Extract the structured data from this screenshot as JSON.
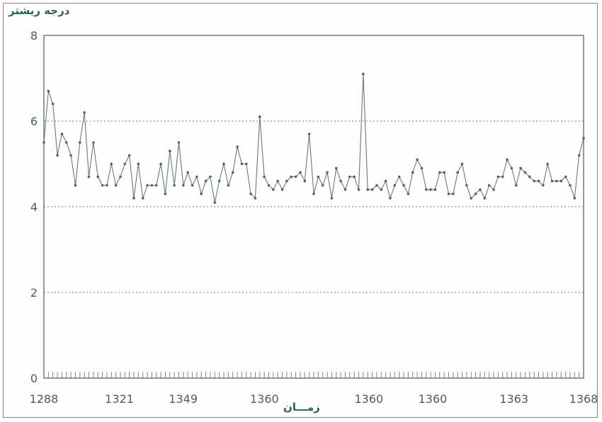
{
  "chart_data": {
    "type": "line",
    "ylabel": "درجه ریشتر",
    "xlabel": "زمـــان",
    "ylim": [
      0,
      8
    ],
    "y_ticks": [
      "0",
      "2",
      "4",
      "6",
      "8"
    ],
    "y_tick_values": [
      0,
      2,
      4,
      6,
      8
    ],
    "x_tick_labels": [
      "1288",
      "1321",
      "1349",
      "1360",
      "1360",
      "1360",
      "1363",
      "1368"
    ],
    "x_tick_positions": [
      0,
      13,
      24,
      38,
      56,
      67,
      81,
      93
    ],
    "x_range": [
      0,
      93
    ],
    "grid": "dotted horizontal lines at y = 2, 4, 6",
    "line_color": "#6a7a74",
    "series": [
      {
        "values": [
          5.5,
          6.7,
          6.4,
          5.2,
          5.7,
          5.5,
          5.2,
          4.5,
          5.5,
          6.2,
          4.7,
          5.5,
          4.7,
          4.5,
          4.5,
          5.0,
          4.5,
          4.7,
          5.0,
          5.2,
          4.2,
          5.0,
          4.2,
          4.5,
          4.5,
          4.5,
          5.0,
          4.3,
          5.3,
          4.5,
          5.5,
          4.5,
          4.8,
          4.5,
          4.7,
          4.3,
          4.6,
          4.7,
          4.1,
          4.6,
          5.0,
          4.5,
          4.8,
          5.4,
          5.0,
          5.0,
          4.3,
          4.2,
          6.1,
          4.7,
          4.5,
          4.4,
          4.6,
          4.4,
          4.6,
          4.7,
          4.7,
          4.8,
          4.6,
          5.7,
          4.3,
          4.7,
          4.5,
          4.8,
          4.2,
          4.9,
          4.6,
          4.4,
          4.7,
          4.7,
          4.4,
          7.1,
          4.4,
          4.4,
          4.5,
          4.4,
          4.6,
          4.2,
          4.5,
          4.7,
          4.5,
          4.3,
          4.8,
          5.1,
          4.9,
          4.4,
          4.4,
          4.4,
          4.8,
          4.8,
          4.3,
          4.3,
          4.8,
          5.0,
          4.5,
          4.2,
          4.3,
          4.4,
          4.2,
          4.5,
          4.4,
          4.7,
          4.7,
          5.1,
          4.9,
          4.5,
          4.9,
          4.8,
          4.7,
          4.6,
          4.6,
          4.5,
          5.0,
          4.6,
          4.6,
          4.6,
          4.7,
          4.5,
          4.2,
          5.2,
          5.6
        ]
      }
    ]
  }
}
